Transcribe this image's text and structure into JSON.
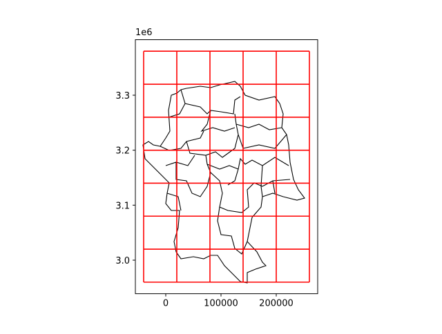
{
  "chart_data": {
    "type": "map",
    "offset_label": "1e6",
    "xlim": [
      -55000,
      275000
    ],
    "ylim": [
      2939000,
      3401000
    ],
    "xticks": [
      0,
      100000,
      200000
    ],
    "yticks": [
      {
        "value": 3000000,
        "label": "3.0"
      },
      {
        "value": 3100000,
        "label": "3.1"
      },
      {
        "value": 3200000,
        "label": "3.2"
      },
      {
        "value": 3300000,
        "label": "3.3"
      }
    ],
    "grid_x": [
      -40000,
      20000,
      80000,
      140000,
      200000,
      260000
    ],
    "grid_y": [
      2960000,
      3020000,
      3080000,
      3140000,
      3200000,
      3260000,
      3320000,
      3380000
    ],
    "grid_color": "#ff0000",
    "outline_color": "#000000"
  }
}
